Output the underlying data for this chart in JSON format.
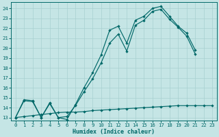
{
  "xlabel": "Humidex (Indice chaleur)",
  "bg_color": "#c5e5e5",
  "grid_color": "#a8d0d0",
  "line_color": "#006868",
  "xlim": [
    -0.5,
    23.5
  ],
  "ylim": [
    12.7,
    24.6
  ],
  "xticks": [
    0,
    1,
    2,
    3,
    4,
    5,
    6,
    7,
    8,
    9,
    10,
    11,
    12,
    13,
    14,
    15,
    16,
    17,
    18,
    19,
    20,
    21,
    22,
    23
  ],
  "yticks": [
    13,
    14,
    15,
    16,
    17,
    18,
    19,
    20,
    21,
    22,
    23,
    24
  ],
  "line1_x": [
    0,
    1,
    2,
    3,
    4,
    5,
    6,
    7,
    8,
    9,
    10,
    11,
    12,
    13,
    14,
    15,
    16,
    17,
    18,
    19,
    20,
    21
  ],
  "line1_y": [
    13.0,
    14.8,
    14.7,
    13.0,
    14.5,
    13.0,
    12.8,
    14.3,
    16.0,
    17.5,
    19.3,
    21.8,
    22.2,
    20.5,
    22.8,
    23.2,
    24.0,
    24.2,
    23.2,
    22.2,
    21.5,
    19.8
  ],
  "line2_x": [
    0,
    1,
    2,
    3,
    4,
    5,
    6,
    7,
    8,
    9,
    10,
    11,
    12,
    13,
    14,
    15,
    16,
    17,
    18,
    19,
    20,
    21
  ],
  "line2_y": [
    13.0,
    14.7,
    14.6,
    13.0,
    14.4,
    13.0,
    13.1,
    14.2,
    15.6,
    16.9,
    18.5,
    20.5,
    21.4,
    19.7,
    22.3,
    22.8,
    23.7,
    23.9,
    22.9,
    22.1,
    21.2,
    19.4
  ],
  "line3_x": [
    0,
    1,
    2,
    3,
    4,
    5,
    6,
    7,
    8,
    9,
    10,
    11,
    12,
    13,
    14,
    15,
    16,
    17,
    18,
    19,
    20,
    21,
    22,
    23
  ],
  "line3_y": [
    13.0,
    13.1,
    13.2,
    13.3,
    13.4,
    13.5,
    13.55,
    13.55,
    13.6,
    13.7,
    13.75,
    13.8,
    13.85,
    13.9,
    13.95,
    14.0,
    14.05,
    14.1,
    14.15,
    14.2,
    14.2,
    14.2,
    14.2,
    14.2
  ]
}
